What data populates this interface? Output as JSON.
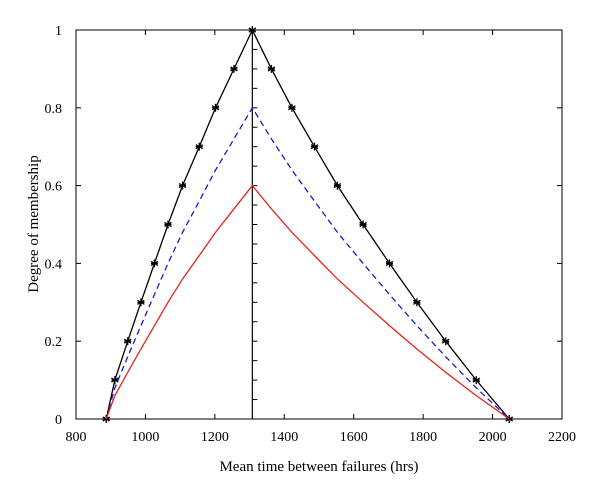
{
  "chart_data": {
    "type": "line",
    "xlabel": "Mean time between failures (hrs)",
    "ylabel": "Degree of membership",
    "xlim": [
      800,
      2200
    ],
    "ylim": [
      0,
      1
    ],
    "xticks": [
      800,
      1000,
      1200,
      1400,
      1600,
      1800,
      2000,
      2200
    ],
    "yticks": [
      0,
      0.2,
      0.4,
      0.6,
      0.8,
      1
    ],
    "grid": false,
    "vertical_reference_x": 1308,
    "series": [
      {
        "style": "solid-black-asterisk",
        "color": "#000000",
        "points": [
          [
            887,
            0
          ],
          [
            912,
            0.1
          ],
          [
            949,
            0.2
          ],
          [
            987,
            0.3
          ],
          [
            1026,
            0.4
          ],
          [
            1065,
            0.5
          ],
          [
            1107,
            0.6
          ],
          [
            1155,
            0.7
          ],
          [
            1202,
            0.8
          ],
          [
            1255,
            0.9
          ],
          [
            1308,
            1.0
          ],
          [
            1363,
            0.9
          ],
          [
            1422,
            0.8
          ],
          [
            1487,
            0.7
          ],
          [
            1553,
            0.6
          ],
          [
            1627,
            0.5
          ],
          [
            1703,
            0.4
          ],
          [
            1782,
            0.3
          ],
          [
            1865,
            0.2
          ],
          [
            1953,
            0.1
          ],
          [
            2048,
            0
          ]
        ]
      },
      {
        "style": "dashed-blue",
        "color": "#1a1acc",
        "points": [
          [
            887,
            0
          ],
          [
            912,
            0.08
          ],
          [
            949,
            0.16
          ],
          [
            987,
            0.24
          ],
          [
            1026,
            0.32
          ],
          [
            1065,
            0.4
          ],
          [
            1107,
            0.48
          ],
          [
            1155,
            0.56
          ],
          [
            1202,
            0.64
          ],
          [
            1255,
            0.72
          ],
          [
            1308,
            0.8
          ],
          [
            1363,
            0.72
          ],
          [
            1422,
            0.64
          ],
          [
            1487,
            0.56
          ],
          [
            1553,
            0.48
          ],
          [
            1627,
            0.4
          ],
          [
            1703,
            0.32
          ],
          [
            1782,
            0.24
          ],
          [
            1865,
            0.16
          ],
          [
            1953,
            0.08
          ],
          [
            2048,
            0
          ]
        ]
      },
      {
        "style": "solid-red",
        "color": "#e8231a",
        "points": [
          [
            887,
            0
          ],
          [
            912,
            0.06
          ],
          [
            949,
            0.12
          ],
          [
            987,
            0.18
          ],
          [
            1026,
            0.24
          ],
          [
            1065,
            0.3
          ],
          [
            1107,
            0.36
          ],
          [
            1155,
            0.42
          ],
          [
            1202,
            0.48
          ],
          [
            1255,
            0.54
          ],
          [
            1308,
            0.6
          ],
          [
            1363,
            0.54
          ],
          [
            1422,
            0.48
          ],
          [
            1487,
            0.42
          ],
          [
            1553,
            0.36
          ],
          [
            1627,
            0.3
          ],
          [
            1703,
            0.24
          ],
          [
            1782,
            0.18
          ],
          [
            1865,
            0.12
          ],
          [
            1953,
            0.06
          ],
          [
            2048,
            0
          ]
        ]
      }
    ]
  }
}
